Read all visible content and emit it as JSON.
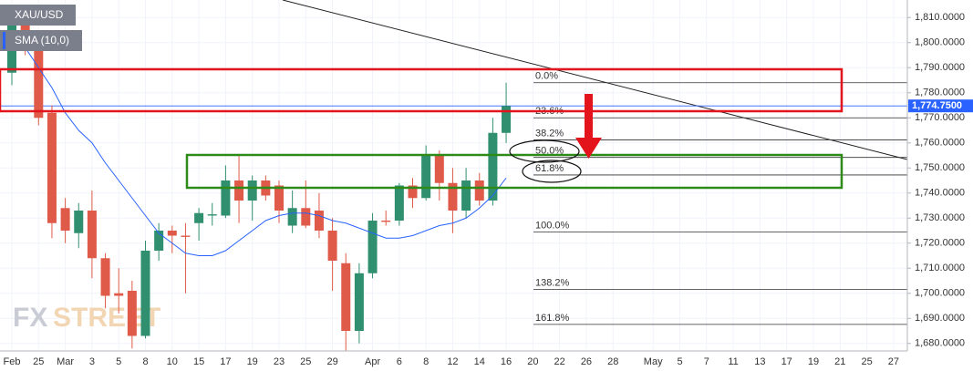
{
  "chart_data": {
    "type": "candlestick",
    "title": "XAU/USD",
    "watermark": [
      "FX",
      "STREET"
    ],
    "up_color": "#2f8f6e",
    "down_color": "#df5a48",
    "categories": [
      "Feb",
      null,
      "25",
      null,
      "Mar",
      null,
      "3",
      null,
      "5",
      null,
      "8",
      null,
      "10",
      null,
      "15",
      null,
      "17",
      null,
      "19",
      null,
      "23",
      null,
      "25",
      null,
      "29",
      null,
      null,
      "Apr",
      null,
      "6",
      null,
      "8",
      null,
      "12",
      null,
      "14",
      null,
      "16",
      null,
      "20",
      null,
      "22",
      null,
      "26",
      null,
      "28",
      null,
      null,
      "May",
      null,
      "5",
      null,
      "7",
      null,
      "11",
      null,
      "13",
      null,
      "17",
      null,
      "19",
      null,
      "21",
      null,
      "25",
      null,
      "27"
    ],
    "open": [
      1788,
      1808,
      1799,
      1772,
      1734,
      1724,
      1733,
      1714,
      1700,
      1701,
      1683,
      1717,
      1725,
      1723,
      1728,
      1731,
      1731,
      1745,
      1737,
      1745,
      1743,
      1727,
      1734,
      1733,
      1725,
      1712,
      1685,
      1708,
      1729,
      1729,
      1743,
      1738,
      1755,
      1744,
      1733,
      1745,
      1737,
      1764,
      null,
      null,
      null,
      null,
      null,
      null,
      null,
      null,
      null,
      null,
      null,
      null,
      null,
      null,
      null,
      null,
      null,
      null,
      null,
      null,
      null,
      null,
      null,
      null,
      null,
      null,
      null,
      null,
      null
    ],
    "high": [
      1815,
      1811,
      1801,
      1775,
      1738,
      1736,
      1741,
      1716,
      1710,
      1705,
      1721,
      1728,
      1727,
      1728,
      1734,
      1736,
      1751,
      1755,
      1747,
      1747,
      1745,
      1741,
      1745,
      1740,
      1730,
      1716,
      1712,
      1732,
      1733,
      1744,
      1746,
      1759,
      1757,
      1750,
      1750,
      1748,
      1770,
      1784,
      null,
      null,
      null,
      null,
      null,
      null,
      null,
      null,
      null,
      null,
      null,
      null,
      null,
      null,
      null,
      null,
      null,
      null,
      null,
      null,
      null,
      null,
      null,
      null,
      null,
      null,
      null,
      null,
      null
    ],
    "low": [
      1783,
      1795,
      1767,
      1722,
      1720,
      1718,
      1706,
      1694,
      1692,
      1678,
      1682,
      1713,
      1716,
      1700,
      1721,
      1727,
      1730,
      1728,
      1729,
      1737,
      1728,
      1724,
      1726,
      1722,
      1701,
      1677,
      1680,
      1706,
      1727,
      1727,
      1734,
      1737,
      1737,
      1724,
      1730,
      1735,
      1735,
      1760,
      null,
      null,
      null,
      null,
      null,
      null,
      null,
      null,
      null,
      null,
      null,
      null,
      null,
      null,
      null,
      null,
      null,
      null,
      null,
      null,
      null,
      null,
      null,
      null,
      null,
      null,
      null,
      null,
      null
    ],
    "close": [
      1808,
      1800,
      1770,
      1728,
      1725,
      1733,
      1714,
      1699,
      1699,
      1683,
      1717,
      1725,
      1723,
      1722.5,
      1732,
      1731.5,
      1745,
      1737,
      1745,
      1739,
      1733,
      1734,
      1727,
      1725,
      1713,
      1685,
      1708,
      1729,
      1728.5,
      1743,
      1738,
      1755,
      1744,
      1733,
      1745,
      1737,
      1764,
      1774.75,
      null,
      null,
      null,
      null,
      null,
      null,
      null,
      null,
      null,
      null,
      null,
      null,
      null,
      null,
      null,
      null,
      null,
      null,
      null,
      null,
      null,
      null,
      null,
      null,
      null,
      null,
      null,
      null,
      null
    ],
    "sma": {
      "name": "SMA (10,0)",
      "color": "#2962ff",
      "values": [
        1803,
        1798,
        1790,
        1782,
        1772,
        1765,
        1760,
        1752,
        1745,
        1738,
        1731,
        1724,
        1720,
        1716,
        1715,
        1715,
        1717,
        1721,
        1725,
        1729,
        1731,
        1732,
        1732,
        1731,
        1729,
        1728,
        1726,
        1724,
        1722,
        1722,
        1723,
        1725,
        1727,
        1728,
        1730,
        1734,
        1739,
        1746,
        null,
        null,
        null,
        null,
        null,
        null,
        null,
        null,
        null,
        null,
        null,
        null,
        null,
        null,
        null,
        null,
        null,
        null,
        null,
        null,
        null,
        null,
        null,
        null,
        null,
        null,
        null,
        null,
        null
      ]
    },
    "fib": [
      {
        "value": 1784,
        "label": "0.0%"
      },
      {
        "value": 1770,
        "label": "23.6%"
      },
      {
        "value": 1761.2,
        "label": "38.2%"
      },
      {
        "value": 1754.2,
        "label": "50.0%"
      },
      {
        "value": 1747.2,
        "label": "61.8%"
      },
      {
        "value": 1724.4,
        "label": "100.0%"
      },
      {
        "value": 1701.6,
        "label": "138.2%"
      },
      {
        "value": 1687.6,
        "label": "161.8%"
      }
    ],
    "last_price": {
      "value": 1774.75,
      "label": "1,774.7500"
    },
    "ylim": [
      1677,
      1817
    ],
    "yticks": [
      {
        "value": 1810,
        "label": "1,810.0000"
      },
      {
        "value": 1800,
        "label": "1,800.0000"
      },
      {
        "value": 1790,
        "label": "1,790.0000"
      },
      {
        "value": 1780,
        "label": "1,780.0000"
      },
      {
        "value": 1770,
        "label": "1,770.0000"
      },
      {
        "value": 1760,
        "label": "1,760.0000"
      },
      {
        "value": 1750,
        "label": "1,750.0000"
      },
      {
        "value": 1740,
        "label": "1,740.0000"
      },
      {
        "value": 1730,
        "label": "1,730.0000"
      },
      {
        "value": 1720,
        "label": "1,720.0000"
      },
      {
        "value": 1710,
        "label": "1,710.0000"
      },
      {
        "value": 1700,
        "label": "1,700.0000"
      },
      {
        "value": 1690,
        "label": "1,690.0000"
      },
      {
        "value": 1680,
        "label": "1,680.0000"
      }
    ],
    "grid": true
  }
}
